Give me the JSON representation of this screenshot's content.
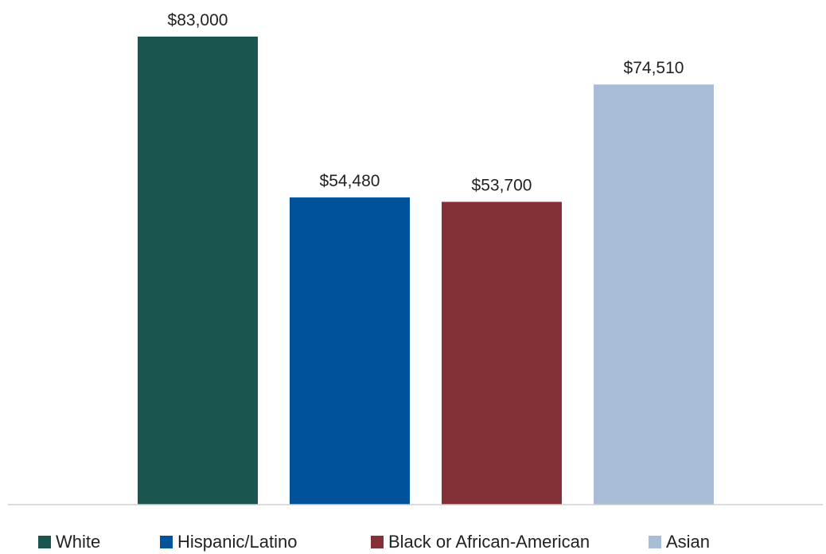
{
  "chart_data": {
    "type": "bar",
    "categories": [
      "White",
      "Hispanic/Latino",
      "Black or African-American",
      "Asian"
    ],
    "values": [
      83000,
      54480,
      53700,
      74510
    ],
    "value_labels": [
      "$83,000",
      "$54,480",
      "$53,700",
      "$74,510"
    ],
    "colors": [
      "#1a5550",
      "#00529b",
      "#833137",
      "#a9bcd6"
    ],
    "title": "",
    "xlabel": "",
    "ylabel": "",
    "ylim": [
      0,
      83000
    ],
    "grid": false,
    "legend_position": "bottom",
    "axis_line_color": "#d0d0d0"
  },
  "legend": {
    "items": [
      {
        "label": "White",
        "color": "#1a5550"
      },
      {
        "label": "Hispanic/Latino",
        "color": "#00529b"
      },
      {
        "label": "Black or African-American",
        "color": "#833137"
      },
      {
        "label": "Asian",
        "color": "#a9bcd6"
      }
    ]
  }
}
